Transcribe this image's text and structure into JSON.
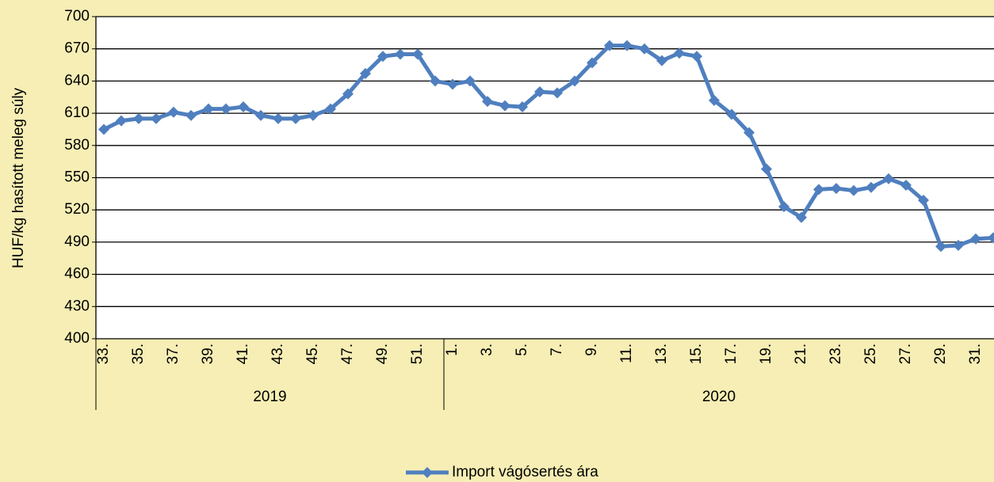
{
  "chart_data": {
    "type": "line",
    "y_label": "HUF/kg hasított meleg súly",
    "categories": [
      "33.",
      null,
      "35.",
      null,
      "37.",
      null,
      "39.",
      null,
      "41.",
      null,
      "43.",
      null,
      "45.",
      null,
      "47.",
      null,
      "49.",
      null,
      "51.",
      null,
      "1.",
      null,
      "3.",
      null,
      "5.",
      null,
      "7.",
      null,
      "9.",
      null,
      "11.",
      null,
      "13.",
      null,
      "15.",
      null,
      "17.",
      null,
      "19.",
      null,
      "21.",
      null,
      "23.",
      null,
      "25.",
      null,
      "27.",
      null,
      "29.",
      null,
      "31.",
      null
    ],
    "groups": [
      {
        "label": "2019",
        "count": 20
      },
      {
        "label": "2020",
        "count": 32
      }
    ],
    "series": [
      {
        "name": "Import vágósertés ára",
        "color": "#4f7fbf",
        "values": [
          595,
          603,
          605,
          605,
          611,
          608,
          614,
          614,
          616,
          608,
          605,
          605,
          608,
          614,
          628,
          647,
          663,
          665,
          665,
          640,
          637,
          640,
          621,
          617,
          616,
          630,
          629,
          640,
          657,
          673,
          673,
          670,
          659,
          666,
          663,
          622,
          609,
          592,
          558,
          523,
          513,
          539,
          540,
          538,
          541,
          549,
          543,
          529,
          486,
          487,
          493,
          494
        ]
      }
    ],
    "ylim": [
      400,
      700
    ],
    "yticks": [
      400,
      430,
      460,
      490,
      520,
      550,
      580,
      610,
      640,
      670,
      700
    ],
    "grid": true,
    "legend": "bottom"
  }
}
